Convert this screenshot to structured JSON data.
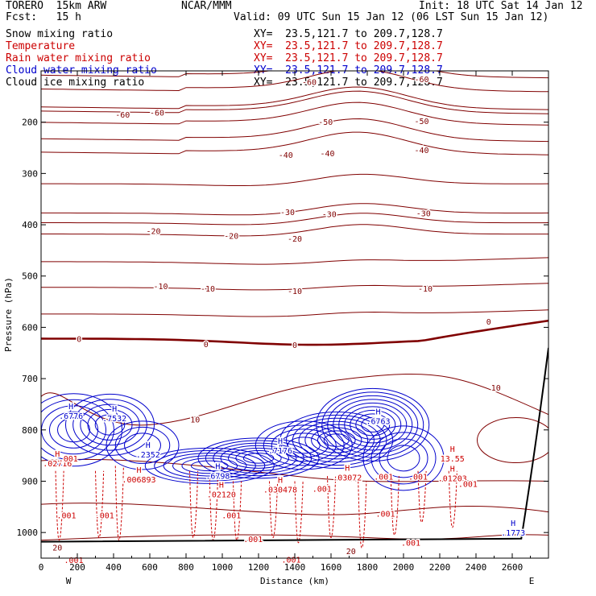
{
  "header": {
    "model": "TORERO  15km ARW",
    "center": "NCAR/MMM",
    "init": "Init: 18 UTC Sat 14 Jan 12",
    "fcst": "Fcst:   15 h",
    "valid": "Valid: 09 UTC Sun 15 Jan 12 (06 LST Sun 15 Jan 12)"
  },
  "fields": [
    {
      "label": "Snow mixing ratio",
      "xy": "XY=  23.5,121.7 to 209.7,128.7",
      "color": "#000000"
    },
    {
      "label": "Temperature",
      "xy": "XY=  23.5,121.7 to 209.7,128.7",
      "color": "#cc0000"
    },
    {
      "label": "Rain water mixing ratio",
      "xy": "XY=  23.5,121.7 to 209.7,128.7",
      "color": "#cc0000"
    },
    {
      "label": "Cloud water mixing ratio",
      "xy": "XY=  23.5,121.7 to 209.7,128.7",
      "color": "#0000cc"
    },
    {
      "label": "Cloud ice mixing ratio",
      "xy": "XY=  23.5,121.7 to 209.7,128.7",
      "color": "#000000"
    }
  ],
  "chart_data": {
    "type": "cross-section contour",
    "xlabel": "Distance (km)",
    "ylabel": "Pressure (hPa)",
    "xlim": [
      0,
      2800
    ],
    "ylim": [
      1050,
      100
    ],
    "xticks": [
      0,
      200,
      400,
      600,
      800,
      1000,
      1200,
      1400,
      1600,
      1800,
      2000,
      2200,
      2400,
      2600
    ],
    "yticks": [
      200,
      300,
      400,
      500,
      600,
      700,
      800,
      900,
      1000
    ],
    "x_ends": [
      "W",
      "E"
    ],
    "temperature_isotherms": [
      {
        "t": -60,
        "labels": [
          {
            "x": 450,
            "p": 185,
            "text": "-60"
          },
          {
            "x": 640,
            "p": 181,
            "text": "-60"
          },
          {
            "x": 1480,
            "p": 121,
            "text": "-60"
          },
          {
            "x": 2100,
            "p": 116,
            "text": "-60"
          }
        ]
      },
      {
        "t": -50,
        "labels": [
          {
            "x": 1570,
            "p": 199,
            "text": "-50"
          },
          {
            "x": 2100,
            "p": 197,
            "text": "-50"
          }
        ]
      },
      {
        "t": -40,
        "labels": [
          {
            "x": 1350,
            "p": 263,
            "text": "-40"
          },
          {
            "x": 1580,
            "p": 260,
            "text": "-40"
          },
          {
            "x": 2100,
            "p": 254,
            "text": "-40"
          }
        ]
      },
      {
        "t": -30,
        "labels": [
          {
            "x": 1360,
            "p": 375,
            "text": "-30"
          },
          {
            "x": 1590,
            "p": 379,
            "text": "-30"
          },
          {
            "x": 2110,
            "p": 377,
            "text": "-30"
          }
        ]
      },
      {
        "t": -20,
        "labels": [
          {
            "x": 620,
            "p": 412,
            "text": "-20"
          },
          {
            "x": 1050,
            "p": 421,
            "text": "-20"
          },
          {
            "x": 1400,
            "p": 427,
            "text": "-20"
          }
        ]
      },
      {
        "t": -10,
        "labels": [
          {
            "x": 660,
            "p": 519,
            "text": "-10"
          },
          {
            "x": 920,
            "p": 524,
            "text": "-10"
          },
          {
            "x": 1400,
            "p": 529,
            "text": "-10"
          },
          {
            "x": 2120,
            "p": 524,
            "text": "-10"
          }
        ]
      },
      {
        "t": 0,
        "labels": [
          {
            "x": 210,
            "p": 622,
            "text": "0"
          },
          {
            "x": 910,
            "p": 632,
            "text": "0"
          },
          {
            "x": 1400,
            "p": 634,
            "text": "0"
          },
          {
            "x": 2470,
            "p": 588,
            "text": "0"
          }
        ]
      },
      {
        "t": 10,
        "labels": [
          {
            "x": 850,
            "p": 779,
            "text": "10"
          },
          {
            "x": 2510,
            "p": 717,
            "text": "10"
          }
        ]
      },
      {
        "t": 20,
        "labels": [
          {
            "x": 90,
            "p": 1029,
            "text": "20"
          },
          {
            "x": 1710,
            "p": 1036,
            "text": "20"
          }
        ]
      }
    ],
    "cloud_water_maxima": [
      {
        "x": 165,
        "p": 763,
        "label": "H",
        "value": ".6776"
      },
      {
        "x": 405,
        "p": 767,
        "label": "H",
        "value": ".7532"
      },
      {
        "x": 590,
        "p": 838,
        "label": "H",
        "value": ".2352"
      },
      {
        "x": 975,
        "p": 880,
        "label": "H",
        "value": ".6798"
      },
      {
        "x": 1320,
        "p": 830,
        "label": "H",
        "value": ".7176"
      },
      {
        "x": 1860,
        "p": 773,
        "label": "H",
        "value": ".6763"
      },
      {
        "x": 2605,
        "p": 990,
        "label": "H",
        "value": ".1773"
      }
    ],
    "rain_water_maxima": [
      {
        "x": 90,
        "p": 855,
        "label": "H",
        "value": ".02716"
      },
      {
        "x": 540,
        "p": 887,
        "label": "H",
        "value": ".006893"
      },
      {
        "x": 995,
        "p": 916,
        "label": "H",
        "value": ".02120"
      },
      {
        "x": 1320,
        "p": 906,
        "label": "H",
        "value": ".030478"
      },
      {
        "x": 1690,
        "p": 883,
        "label": "H",
        "value": ".03072"
      },
      {
        "x": 2270,
        "p": 846,
        "label": "H",
        "value": "13.55"
      },
      {
        "x": 2270,
        "p": 884,
        "label": "H",
        "value": ".01203"
      }
    ],
    "rain_contour_labels": [
      {
        "x": 150,
        "p": 855,
        "text": ".001"
      },
      {
        "x": 140,
        "p": 966,
        "text": ".001"
      },
      {
        "x": 350,
        "p": 966,
        "text": ".001"
      },
      {
        "x": 1050,
        "p": 966,
        "text": ".001"
      },
      {
        "x": 1170,
        "p": 1012,
        "text": ".001"
      },
      {
        "x": 1550,
        "p": 914,
        "text": ".001"
      },
      {
        "x": 1900,
        "p": 963,
        "text": ".001"
      },
      {
        "x": 2040,
        "p": 1019,
        "text": ".001"
      },
      {
        "x": 1380,
        "p": 1052,
        "text": ".001"
      },
      {
        "x": 180,
        "p": 1053,
        "text": ".001"
      },
      {
        "x": 1890,
        "p": 891,
        "text": ".001"
      },
      {
        "x": 2080,
        "p": 891,
        "text": ".001"
      },
      {
        "x": 2355,
        "p": 905,
        "text": ".001"
      }
    ],
    "surface_p_edges": [
      1018,
      1012
    ]
  }
}
